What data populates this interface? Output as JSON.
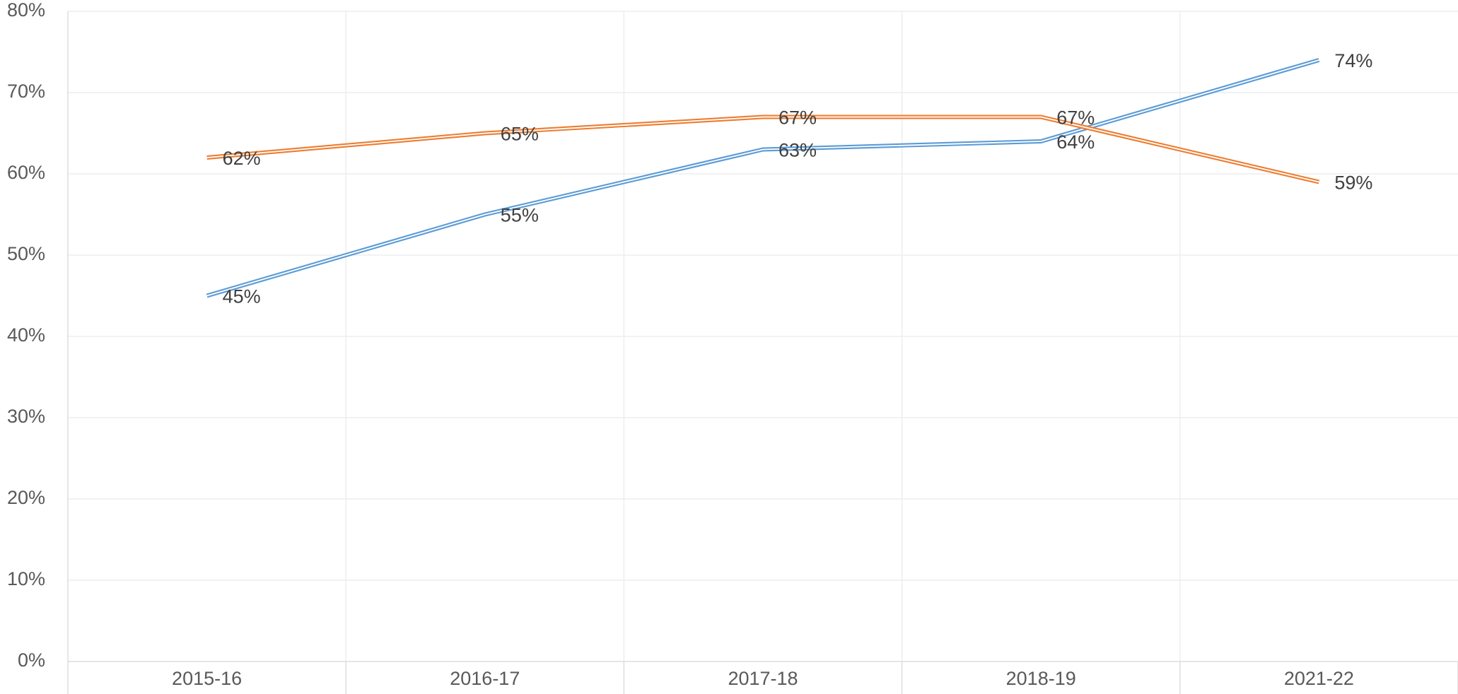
{
  "chart_data": {
    "type": "line",
    "categories": [
      "2015-16",
      "2016-17",
      "2017-18",
      "2018-19",
      "2021-22"
    ],
    "series": [
      {
        "color": "#5b9bd5",
        "values": [
          45,
          55,
          63,
          64,
          74
        ],
        "value_labels": [
          "45%",
          "55%",
          "63%",
          "64%",
          "74%"
        ]
      },
      {
        "color": "#ed7d31",
        "values": [
          62,
          65,
          67,
          67,
          59
        ],
        "value_labels": [
          "62%",
          "65%",
          "67%",
          "67%",
          "59%"
        ]
      }
    ],
    "ylim": [
      0,
      80
    ],
    "yticks": [
      {
        "value": 0,
        "label": "0%"
      },
      {
        "value": 10,
        "label": "10%"
      },
      {
        "value": 20,
        "label": "20%"
      },
      {
        "value": 30,
        "label": "30%"
      },
      {
        "value": 40,
        "label": "40%"
      },
      {
        "value": 50,
        "label": "50%"
      },
      {
        "value": 60,
        "label": "60%"
      },
      {
        "value": 70,
        "label": "70%"
      },
      {
        "value": 80,
        "label": "80%"
      }
    ],
    "grid": true
  }
}
